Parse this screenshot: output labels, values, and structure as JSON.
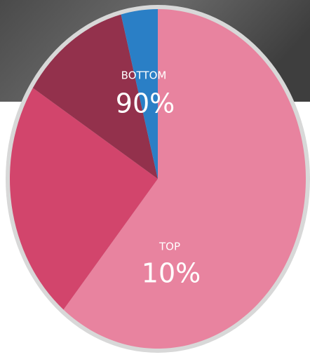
{
  "chart_data": {
    "type": "pie",
    "categories": [
      null,
      null,
      null,
      null
    ],
    "values": [
      61,
      23,
      12,
      4
    ],
    "colors": [
      "#e8839f",
      "#d2456c",
      "#93314c",
      "#2a7fc6"
    ],
    "annotations": [
      "BOTTOM",
      "90%",
      "TOP",
      "10%"
    ]
  }
}
